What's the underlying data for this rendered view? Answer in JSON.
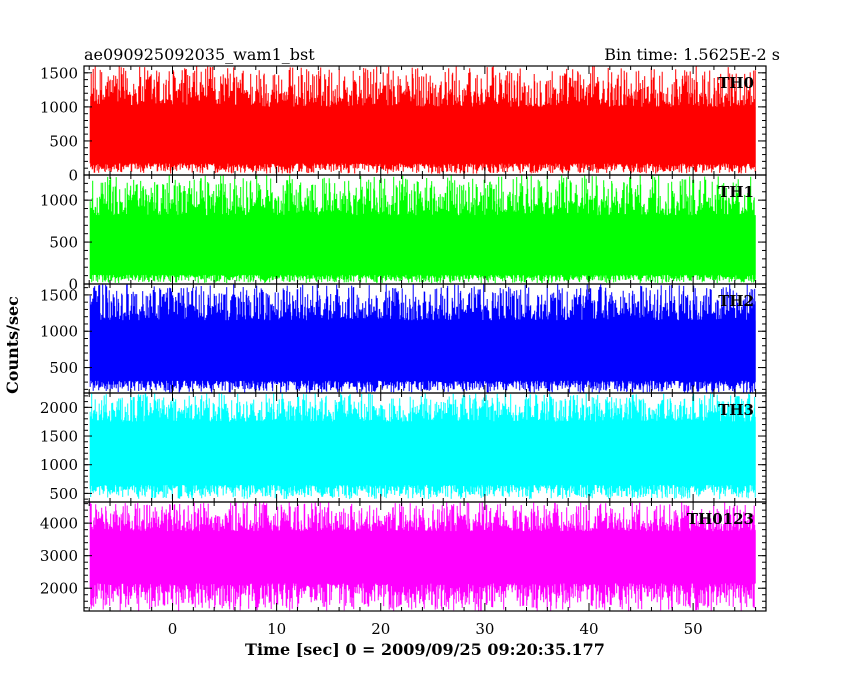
{
  "header": {
    "left": "ae090925092035_wam1_bst",
    "right": "Bin time: 1.5625E-2 s"
  },
  "axes": {
    "ylabel": "Counts/sec",
    "xlabel": "Time [sec] 0 = 2009/09/25 09:20:35.177",
    "x_range": [
      -8.5,
      57
    ],
    "x_ticks": [
      0,
      10,
      20,
      30,
      40,
      50
    ],
    "x_tick_labels": [
      "0",
      "10",
      "20",
      "30",
      "40",
      "50"
    ]
  },
  "chart_data": [
    {
      "type": "line",
      "label": "TH0",
      "color": "#ff0000",
      "x_range": [
        -8.5,
        57
      ],
      "ylim": [
        0,
        1600
      ],
      "y_ticks": [
        0,
        500,
        1000,
        1500
      ],
      "y_tick_labels": [
        "0",
        "500",
        "1000",
        "1500"
      ],
      "series": [
        {
          "x_start": -7.9,
          "x_end": 56.0,
          "bin": 0.015625,
          "band_lower": 170,
          "band_upper": 1000,
          "min": 20,
          "max": 1600
        }
      ]
    },
    {
      "type": "line",
      "label": "TH1",
      "color": "#00ff00",
      "x_range": [
        -8.5,
        57
      ],
      "ylim": [
        0,
        1300
      ],
      "y_ticks": [
        0,
        500,
        1000
      ],
      "y_tick_labels": [
        "0",
        "500",
        "1000"
      ],
      "series": [
        {
          "x_start": -7.9,
          "x_end": 56.0,
          "bin": 0.015625,
          "band_lower": 110,
          "band_upper": 820,
          "min": 10,
          "max": 1300
        }
      ]
    },
    {
      "type": "line",
      "label": "TH2",
      "color": "#0000ff",
      "x_range": [
        -8.5,
        57
      ],
      "ylim": [
        150,
        1650
      ],
      "y_ticks": [
        500,
        1000,
        1500
      ],
      "y_tick_labels": [
        "500",
        "1000",
        "1500"
      ],
      "series": [
        {
          "x_start": -7.9,
          "x_end": 56.0,
          "bin": 0.015625,
          "band_lower": 320,
          "band_upper": 1150,
          "min": 150,
          "max": 1650
        }
      ]
    },
    {
      "type": "line",
      "label": "TH3",
      "color": "#00ffff",
      "x_range": [
        -8.5,
        57
      ],
      "ylim": [
        350,
        2250
      ],
      "y_ticks": [
        500,
        1000,
        1500,
        2000
      ],
      "y_tick_labels": [
        "500",
        "1000",
        "1500",
        "2000"
      ],
      "series": [
        {
          "x_start": -7.9,
          "x_end": 56.0,
          "bin": 0.015625,
          "band_lower": 650,
          "band_upper": 1750,
          "min": 400,
          "max": 2250
        }
      ]
    },
    {
      "type": "line",
      "label": "TH0123",
      "color": "#ff00ff",
      "x_range": [
        -8.5,
        57
      ],
      "ylim": [
        1300,
        4650
      ],
      "y_ticks": [
        2000,
        3000,
        4000
      ],
      "y_tick_labels": [
        "2000",
        "3000",
        "4000"
      ],
      "series": [
        {
          "x_start": -7.9,
          "x_end": 56.0,
          "bin": 0.015625,
          "band_lower": 2150,
          "band_upper": 3750,
          "min": 1300,
          "max": 4650
        }
      ]
    }
  ]
}
